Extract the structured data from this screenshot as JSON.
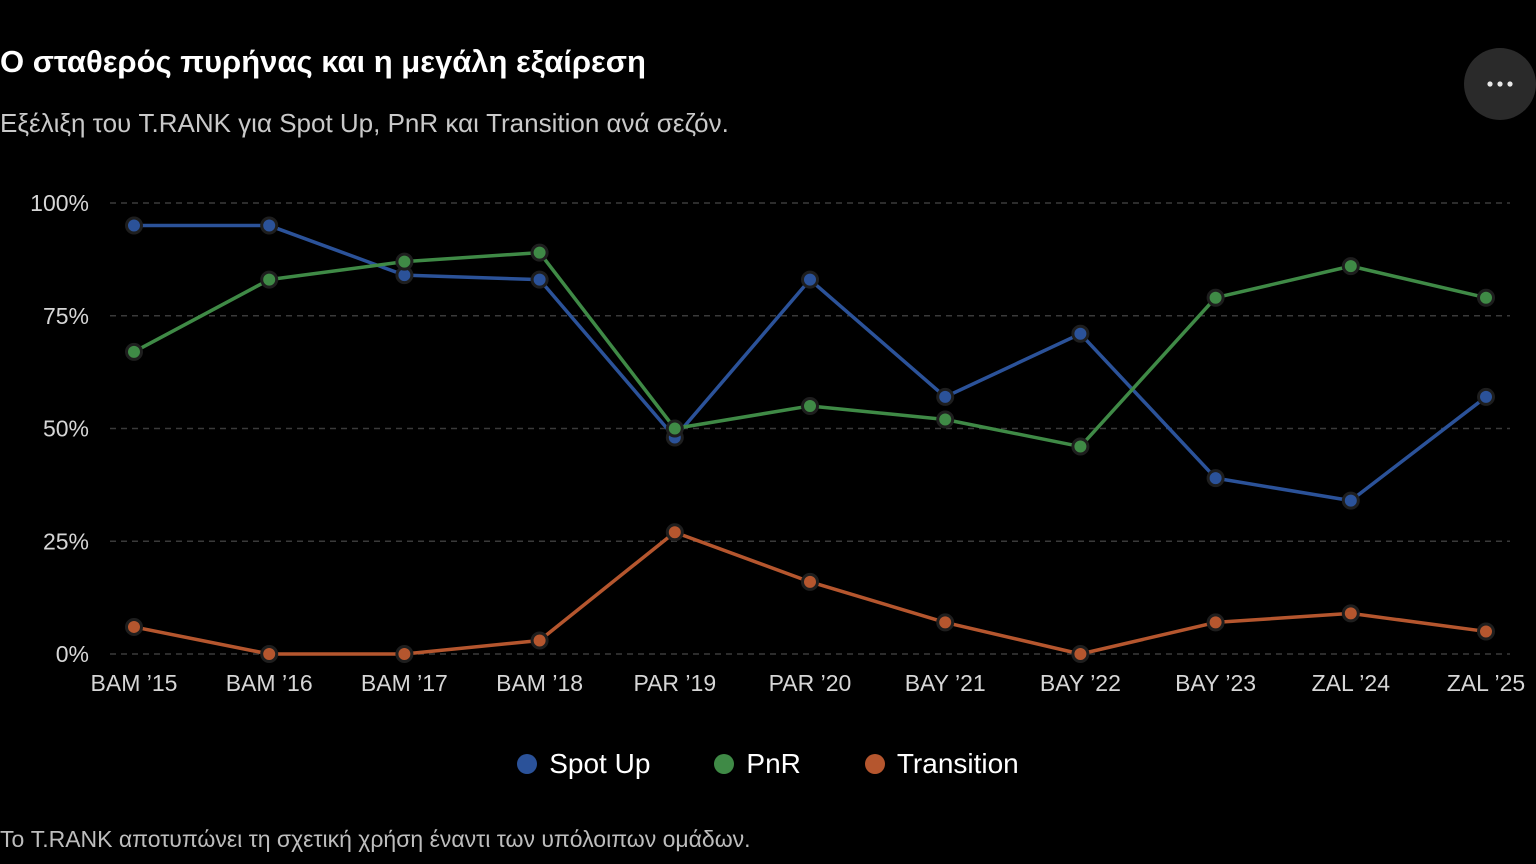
{
  "header": {
    "title": "Ο σταθερός πυρήνας και η μεγάλη εξαίρεση",
    "subtitle": "Εξέλιξη του T.RANK για Spot Up, PnR και Transition ανά σεζόν.",
    "menu_icon": "more-horizontal-icon"
  },
  "footer": {
    "note": "Το T.RANK αποτυπώνει τη σχετική χρήση έναντι των υπόλοιπων ομάδων."
  },
  "chart_data": {
    "type": "line",
    "categories": [
      "BAM ’15",
      "BAM ’16",
      "BAM ’17",
      "BAM ’18",
      "PAR ’19",
      "PAR ’20",
      "BAY ’21",
      "BAY ’22",
      "BAY ’23",
      "ZAL ’24",
      "ZAL ’25"
    ],
    "y_ticks": [
      {
        "value": 0,
        "label": "0%"
      },
      {
        "value": 25,
        "label": "25%"
      },
      {
        "value": 50,
        "label": "50%"
      },
      {
        "value": 75,
        "label": "75%"
      },
      {
        "value": 100,
        "label": "100%"
      }
    ],
    "ylim": [
      0,
      100
    ],
    "grid": true,
    "legend_position": "bottom",
    "series": [
      {
        "name": "Spot Up",
        "color": "#2b5299",
        "values": [
          95,
          95,
          84,
          83,
          48,
          83,
          57,
          71,
          39,
          34,
          57
        ]
      },
      {
        "name": "PnR",
        "color": "#3f8a46",
        "values": [
          67,
          83,
          87,
          89,
          50,
          55,
          52,
          46,
          79,
          86,
          79
        ]
      },
      {
        "name": "Transition",
        "color": "#b5562e",
        "values": [
          6,
          0,
          0,
          3,
          27,
          16,
          7,
          0,
          7,
          9,
          5
        ]
      }
    ]
  }
}
